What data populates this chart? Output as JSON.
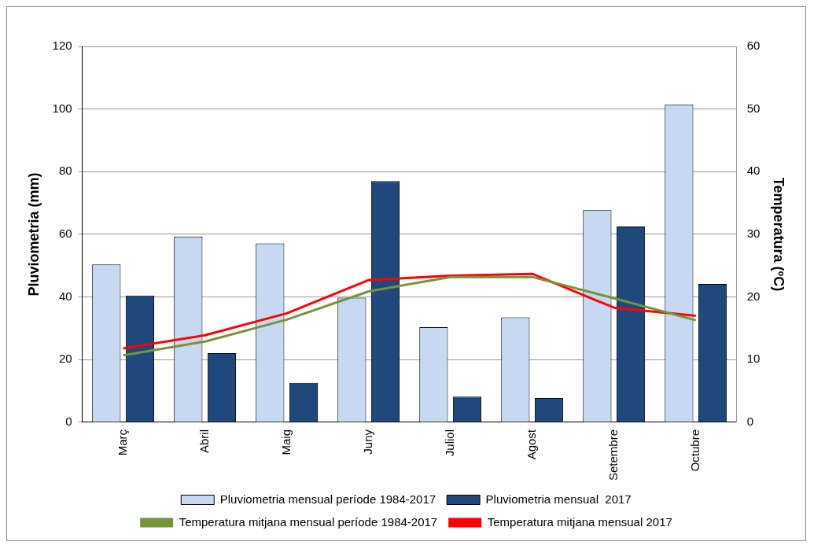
{
  "chart_data": {
    "type": "bar",
    "ylabel": "Pluviometria (mm)",
    "y2label": "Temperatura (ºC)",
    "categories": [
      "Març",
      "Abril",
      "Maig",
      "Juny",
      "Juliol",
      "Agost",
      "Setembre",
      "Octubre"
    ],
    "series": [
      {
        "name": "Pluviometria mensual període 1984-2017",
        "color": "#c6d9f0",
        "values": [
          50.4,
          59.3,
          57.1,
          39.8,
          30.4,
          33.5,
          67.7,
          101.5
        ]
      },
      {
        "name": "Pluviometria mensual  2017",
        "color": "#1f497d",
        "values": [
          40.5,
          22.1,
          12.6,
          77.0,
          8.2,
          7.8,
          62.5,
          44.2
        ]
      },
      {
        "name": "Temperatura mitjana mensual període 1984-2017",
        "type": "line",
        "axis": "y2",
        "color": "#77933c",
        "values": [
          10.7,
          12.9,
          16.4,
          20.9,
          23.2,
          23.2,
          19.8,
          16.3
        ]
      },
      {
        "name": "Temperatura mitjana mensual 2017",
        "type": "line",
        "axis": "y2",
        "color": "#ff0000",
        "values": [
          11.8,
          13.9,
          17.4,
          22.7,
          23.4,
          23.7,
          18.3,
          17.0
        ]
      }
    ],
    "ylim": [
      0,
      120
    ],
    "yticks": [
      0,
      20,
      40,
      60,
      80,
      100,
      120
    ],
    "y2lim": [
      0,
      60
    ],
    "y2ticks": [
      0,
      10,
      20,
      30,
      40,
      50,
      60
    ],
    "grid": "y",
    "legend": "bottom",
    "marker": "none"
  }
}
